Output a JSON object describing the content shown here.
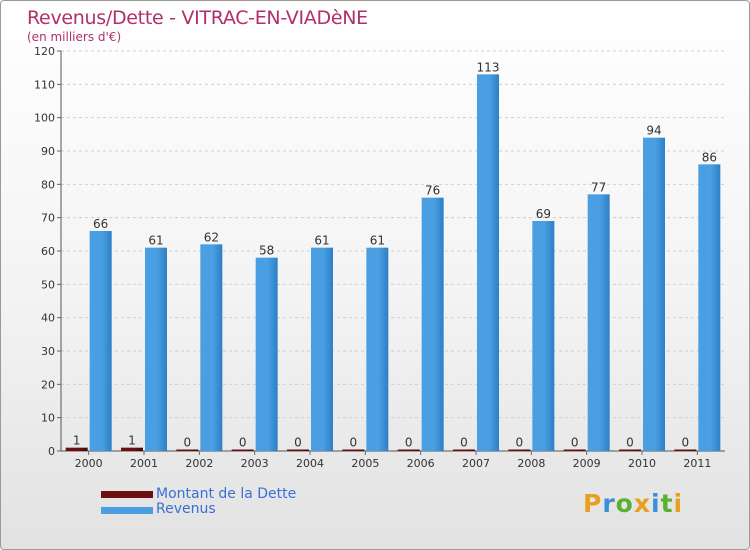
{
  "chart_data": {
    "type": "bar",
    "title": "Revenus/Dette - VITRAC-EN-VIADèNE",
    "subtitle": "(en milliers d'€)",
    "categories": [
      "2000",
      "2001",
      "2002",
      "2003",
      "2004",
      "2005",
      "2006",
      "2007",
      "2008",
      "2009",
      "2010",
      "2011"
    ],
    "series": [
      {
        "name": "Montant de la Dette",
        "color": "#6b0f12",
        "values": [
          1,
          1,
          0,
          0,
          0,
          0,
          0,
          0,
          0,
          0,
          0,
          0
        ]
      },
      {
        "name": "Revenus",
        "color": "#4a9fe2",
        "values": [
          66,
          61,
          62,
          58,
          61,
          61,
          76,
          113,
          69,
          77,
          94,
          86
        ]
      }
    ],
    "ylim": [
      0,
      120
    ],
    "yticks": [
      0,
      10,
      20,
      30,
      40,
      50,
      60,
      70,
      80,
      90,
      100,
      110,
      120
    ],
    "grid": true,
    "legend": "bottom-left"
  },
  "logo": {
    "text": "Proxiti",
    "letter_colors": [
      "#e8a020",
      "#3a8fd8",
      "#5ab030",
      "#e8a020",
      "#3a8fd8",
      "#5ab030",
      "#e8a020"
    ]
  }
}
